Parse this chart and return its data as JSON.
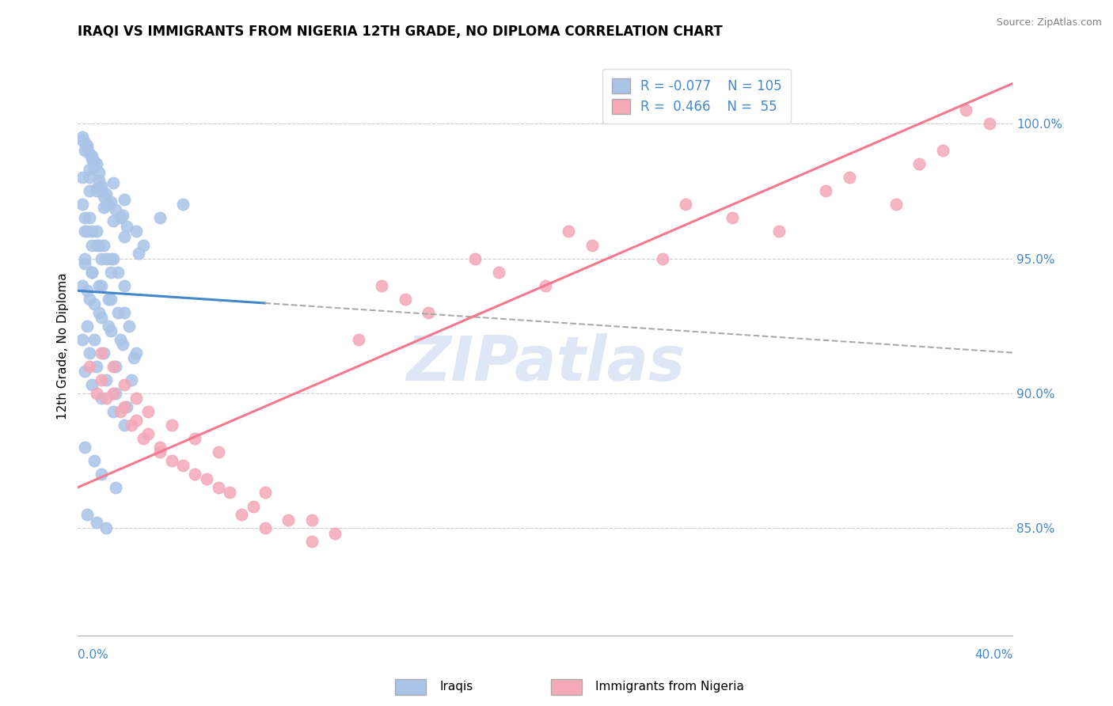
{
  "title": "IRAQI VS IMMIGRANTS FROM NIGERIA 12TH GRADE, NO DIPLOMA CORRELATION CHART",
  "source": "Source: ZipAtlas.com",
  "ylabel": "12th Grade, No Diploma",
  "yaxis_values": [
    85.0,
    90.0,
    95.0,
    100.0
  ],
  "xmin": 0.0,
  "xmax": 40.0,
  "ymin": 81.0,
  "ymax": 102.5,
  "iraqis_color": "#aac4e8",
  "nigeria_color": "#f4a8b8",
  "trendline_iraqis_solid_color": "#4488cc",
  "trendline_iraqis_dash_color": "#aaaaaa",
  "trendline_nigeria_color": "#f47890",
  "watermark": "ZIPatlas",
  "watermark_color": "#c8d8f0",
  "iraqis_scatter_x": [
    0.5,
    0.8,
    1.0,
    1.2,
    0.3,
    0.6,
    0.9,
    1.5,
    2.0,
    0.4,
    0.7,
    1.1,
    0.2,
    0.5,
    0.8,
    1.3,
    1.8,
    2.5,
    0.3,
    0.6,
    0.9,
    1.2,
    1.6,
    2.1,
    0.4,
    0.7,
    1.0,
    1.4,
    1.9,
    2.8,
    0.2,
    0.5,
    0.8,
    1.1,
    1.5,
    2.0,
    2.6,
    0.3,
    0.6,
    0.9,
    1.3,
    1.7,
    2.2,
    0.4,
    0.7,
    1.0,
    1.4,
    1.9,
    2.4,
    0.2,
    0.5,
    0.8,
    1.2,
    1.6,
    2.1,
    0.3,
    0.6,
    1.0,
    1.5,
    2.0,
    0.4,
    0.7,
    1.1,
    1.6,
    2.3,
    0.2,
    0.5,
    0.9,
    1.3,
    1.8,
    2.5,
    0.3,
    0.6,
    1.0,
    1.4,
    2.0,
    0.4,
    0.8,
    1.2,
    1.7,
    0.3,
    0.6,
    0.9,
    1.4,
    0.2,
    0.5,
    0.8,
    1.1,
    1.5,
    0.3,
    0.7,
    1.0,
    1.6,
    0.4,
    0.8,
    1.2,
    0.2,
    0.5,
    4.5,
    3.5,
    0.3,
    0.6,
    1.0,
    1.4,
    2.0
  ],
  "iraqis_scatter_y": [
    98.0,
    98.5,
    97.5,
    97.0,
    99.0,
    98.8,
    98.2,
    97.8,
    97.2,
    99.2,
    98.6,
    97.3,
    99.5,
    98.9,
    97.6,
    97.0,
    96.5,
    96.0,
    99.3,
    98.7,
    97.9,
    97.4,
    96.8,
    96.2,
    99.1,
    98.4,
    97.7,
    97.1,
    96.6,
    95.5,
    99.4,
    98.3,
    97.5,
    96.9,
    96.4,
    95.8,
    95.2,
    94.8,
    94.5,
    94.0,
    93.5,
    93.0,
    92.5,
    93.8,
    93.3,
    92.8,
    92.3,
    91.8,
    91.3,
    92.0,
    91.5,
    91.0,
    90.5,
    90.0,
    89.5,
    90.8,
    90.3,
    89.8,
    89.3,
    88.8,
    92.5,
    92.0,
    91.5,
    91.0,
    90.5,
    94.0,
    93.5,
    93.0,
    92.5,
    92.0,
    91.5,
    95.0,
    94.5,
    94.0,
    93.5,
    93.0,
    96.0,
    95.5,
    95.0,
    94.5,
    96.5,
    96.0,
    95.5,
    95.0,
    97.0,
    96.5,
    96.0,
    95.5,
    95.0,
    88.0,
    87.5,
    87.0,
    86.5,
    85.5,
    85.2,
    85.0,
    98.0,
    97.5,
    97.0,
    96.5,
    96.0,
    95.5,
    95.0,
    94.5,
    94.0
  ],
  "nigeria_scatter_x": [
    0.5,
    1.0,
    1.5,
    2.0,
    2.5,
    3.0,
    3.5,
    4.0,
    5.0,
    6.0,
    7.0,
    8.0,
    10.0,
    12.0,
    15.0,
    20.0,
    25.0,
    30.0,
    35.0,
    38.0,
    0.8,
    1.2,
    1.8,
    2.3,
    2.8,
    3.5,
    4.5,
    5.5,
    6.5,
    7.5,
    9.0,
    11.0,
    14.0,
    18.0,
    22.0,
    28.0,
    32.0,
    36.0,
    1.0,
    1.5,
    2.0,
    2.5,
    3.0,
    4.0,
    5.0,
    6.0,
    8.0,
    10.0,
    13.0,
    17.0,
    21.0,
    26.0,
    33.0,
    37.0,
    39.0
  ],
  "nigeria_scatter_y": [
    91.0,
    90.5,
    90.0,
    89.5,
    89.0,
    88.5,
    88.0,
    87.5,
    87.0,
    86.5,
    85.5,
    85.0,
    84.5,
    92.0,
    93.0,
    94.0,
    95.0,
    96.0,
    97.0,
    100.5,
    90.0,
    89.8,
    89.3,
    88.8,
    88.3,
    87.8,
    87.3,
    86.8,
    86.3,
    85.8,
    85.3,
    84.8,
    93.5,
    94.5,
    95.5,
    96.5,
    97.5,
    98.5,
    91.5,
    91.0,
    90.3,
    89.8,
    89.3,
    88.8,
    88.3,
    87.8,
    86.3,
    85.3,
    94.0,
    95.0,
    96.0,
    97.0,
    98.0,
    99.0,
    100.0
  ],
  "trendline_iraqis_x0": 0.0,
  "trendline_iraqis_x1": 40.0,
  "trendline_iraqis_y0": 93.8,
  "trendline_iraqis_y1": 91.5,
  "trendline_iraqis_solid_end_x": 8.0,
  "trendline_nigeria_x0": 0.0,
  "trendline_nigeria_x1": 40.0,
  "trendline_nigeria_y0": 86.5,
  "trendline_nigeria_y1": 101.5,
  "legend_label1": "R = -0.077    N = 105",
  "legend_label2": "R =  0.466    N =  55",
  "bottom_label1": "Iraqis",
  "bottom_label2": "Immigrants from Nigeria"
}
